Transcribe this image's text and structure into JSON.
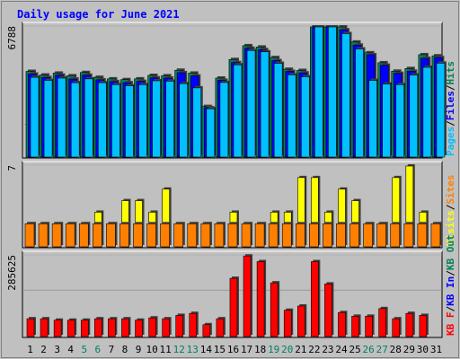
{
  "colors": {
    "background": "#C0C0C0",
    "frame": "#FFFFFF",
    "title": "#0000FF",
    "hits": "#00805C",
    "files": "#0000FF",
    "pages": "#00C0FF",
    "visits": "#FFFF00",
    "sites": "#FF8000",
    "kb_in": "#0000FF",
    "kb_out": "#00805C",
    "kb_f": "#FF0000",
    "weekend_label": "#00805C",
    "weekday_label": "#000000"
  },
  "chart_data": {
    "type": "bar",
    "title": "Daily usage for June 2021",
    "categories": [
      "1",
      "2",
      "3",
      "4",
      "5",
      "6",
      "7",
      "8",
      "9",
      "10",
      "11",
      "12",
      "13",
      "14",
      "15",
      "16",
      "17",
      "18",
      "19",
      "20",
      "21",
      "22",
      "23",
      "24",
      "25",
      "26",
      "27",
      "28",
      "29",
      "30",
      "31"
    ],
    "weekend_days": [
      5,
      6,
      12,
      13,
      19,
      20,
      26,
      27
    ],
    "panels": [
      {
        "id": "hits_files_pages",
        "ymax_label": "6788",
        "ymax": 6788,
        "legend": [
          "Pages",
          "Files",
          "Hits"
        ],
        "series": [
          {
            "name": "Hits",
            "color_key": "hits",
            "values": [
              4470,
              4280,
              4380,
              4240,
              4410,
              4160,
              4080,
              4040,
              4080,
              4260,
              4240,
              4530,
              4380,
              2640,
              4120,
              5090,
              5810,
              5740,
              5190,
              4580,
              4520,
              7420,
              7190,
              6790,
              6000,
              5440,
              4920,
              4480,
              4620,
              5340,
              5280
            ]
          },
          {
            "name": "Files",
            "color_key": "files",
            "values": [
              4330,
              4150,
              4270,
              4070,
              4270,
              4030,
              3940,
              3880,
              3950,
              4130,
              4120,
              4400,
              4230,
              2580,
              4010,
              4930,
              5680,
              5610,
              5030,
              4470,
              4390,
              7260,
              7020,
              6640,
              5840,
              5340,
              4790,
              4370,
              4480,
              5150,
              5190
            ]
          },
          {
            "name": "Pages",
            "color_key": "pages",
            "values": [
              4160,
              4000,
              4120,
              3880,
              4080,
              3880,
              3780,
              3720,
              3780,
              3980,
              3960,
              3830,
              3610,
              2520,
              3890,
              4810,
              5560,
              5490,
              4890,
              4290,
              4190,
              7010,
              6800,
              6440,
              5640,
              4000,
              3810,
              3780,
              4280,
              4680,
              4900
            ]
          }
        ]
      },
      {
        "id": "visits_sites",
        "ymax_label": "7",
        "ymax": 7,
        "legend": [
          "Visits",
          "Sites"
        ],
        "series": [
          {
            "name": "Visits",
            "color_key": "visits",
            "values": [
              2,
              2,
              2,
              2,
              2,
              3,
              2,
              4,
              4,
              3,
              5,
              2,
              2,
              2,
              2,
              3,
              2,
              2,
              3,
              3,
              6,
              6,
              3,
              5,
              4,
              2,
              2,
              6,
              7,
              3,
              2
            ]
          },
          {
            "name": "Sites",
            "color_key": "sites",
            "values": [
              2,
              2,
              2,
              2,
              2,
              2,
              2,
              2,
              2,
              2,
              2,
              2,
              2,
              2,
              2,
              2,
              2,
              2,
              2,
              2,
              2,
              2,
              2,
              2,
              2,
              2,
              2,
              2,
              2,
              2,
              2
            ]
          }
        ]
      },
      {
        "id": "kbytes",
        "ymax_label": "285625",
        "ymax": 285625,
        "legend": [
          "KB F",
          "KB In",
          "KB Out"
        ],
        "series": [
          {
            "name": "KB F",
            "color_key": "kb_f",
            "values": [
              63000,
              63000,
              58000,
              58000,
              58000,
              63000,
              63000,
              63000,
              58000,
              66000,
              63000,
              75000,
              82000,
              42000,
              63000,
              206000,
              285000,
              265000,
              190000,
              93000,
              108000,
              265000,
              186000,
              85000,
              72000,
              72000,
              99000,
              63000,
              82000,
              75000,
              0
            ]
          }
        ]
      }
    ]
  }
}
